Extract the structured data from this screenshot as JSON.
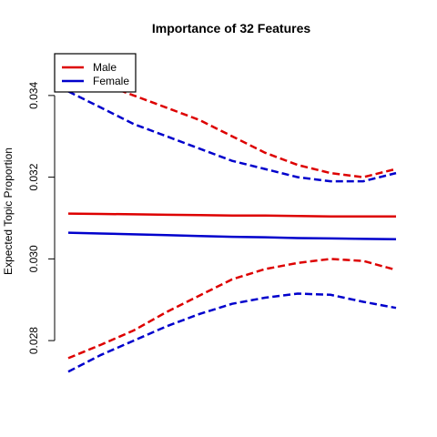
{
  "chart_data": {
    "type": "line",
    "title": "Importance of 32 Features",
    "xlabel": "",
    "ylabel": "Expected Topic Proportion",
    "ylim": [
      0.0272,
      0.035
    ],
    "yticks": [
      "0.028",
      "0.030",
      "0.032",
      "0.034"
    ],
    "grid": false,
    "legend_position": "top-left",
    "x": [
      0,
      1,
      2,
      3,
      4,
      5,
      6,
      7,
      8,
      9,
      10
    ],
    "series": [
      {
        "name": "Male",
        "color": "#dd0000",
        "style": "solid",
        "role": "estimate",
        "values": [
          0.03111,
          0.0311,
          0.03109,
          0.03108,
          0.03107,
          0.03106,
          0.03106,
          0.03105,
          0.03104,
          0.03104,
          0.03104
        ]
      },
      {
        "name": "Male",
        "color": "#dd0000",
        "style": "dashed",
        "role": "upper",
        "values": [
          0.0346,
          0.0343,
          0.034,
          0.0337,
          0.0334,
          0.033,
          0.0326,
          0.0323,
          0.0321,
          0.032,
          0.0322
        ]
      },
      {
        "name": "Male",
        "color": "#dd0000",
        "style": "dashed",
        "role": "lower",
        "values": [
          0.02757,
          0.0279,
          0.02825,
          0.0287,
          0.0291,
          0.0295,
          0.02975,
          0.0299,
          0.03,
          0.02995,
          0.02973
        ]
      },
      {
        "name": "Female",
        "color": "#0000cc",
        "style": "solid",
        "role": "estimate",
        "values": [
          0.03064,
          0.03062,
          0.0306,
          0.03058,
          0.03056,
          0.03054,
          0.03053,
          0.03051,
          0.0305,
          0.03049,
          0.03048
        ]
      },
      {
        "name": "Female",
        "color": "#0000cc",
        "style": "dashed",
        "role": "upper",
        "values": [
          0.0341,
          0.0337,
          0.0333,
          0.033,
          0.0327,
          0.0324,
          0.0322,
          0.032,
          0.0319,
          0.0319,
          0.0321
        ]
      },
      {
        "name": "Female",
        "color": "#0000cc",
        "style": "dashed",
        "role": "lower",
        "values": [
          0.02724,
          0.02765,
          0.028,
          0.02835,
          0.02865,
          0.0289,
          0.02905,
          0.02915,
          0.02912,
          0.02895,
          0.0288
        ]
      }
    ],
    "legend": [
      {
        "label": "Male",
        "color": "#dd0000"
      },
      {
        "label": "Female",
        "color": "#0000cc"
      }
    ]
  }
}
